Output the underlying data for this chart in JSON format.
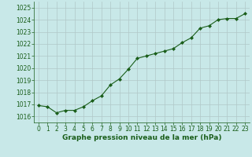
{
  "x": [
    0,
    1,
    2,
    3,
    4,
    5,
    6,
    7,
    8,
    9,
    10,
    11,
    12,
    13,
    14,
    15,
    16,
    17,
    18,
    19,
    20,
    21,
    22,
    23
  ],
  "y": [
    1016.9,
    1016.8,
    1016.3,
    1016.5,
    1016.5,
    1016.8,
    1017.3,
    1017.7,
    1018.6,
    1019.1,
    1019.9,
    1020.8,
    1021.0,
    1021.2,
    1021.4,
    1021.6,
    1022.1,
    1022.5,
    1023.3,
    1023.5,
    1024.0,
    1024.1,
    1024.1,
    1024.5
  ],
  "ylim": [
    1015.5,
    1025.5
  ],
  "xlim": [
    -0.5,
    23.5
  ],
  "yticks": [
    1016,
    1017,
    1018,
    1019,
    1020,
    1021,
    1022,
    1023,
    1024,
    1025
  ],
  "xticks": [
    0,
    1,
    2,
    3,
    4,
    5,
    6,
    7,
    8,
    9,
    10,
    11,
    12,
    13,
    14,
    15,
    16,
    17,
    18,
    19,
    20,
    21,
    22,
    23
  ],
  "line_color": "#1a5e1a",
  "marker_color": "#1a5e1a",
  "bg_color": "#c8e8e8",
  "grid_color": "#b0c8c8",
  "xlabel": "Graphe pression niveau de la mer (hPa)",
  "xlabel_color": "#1a5e1a",
  "tick_color": "#1a5e1a",
  "xlabel_fontsize": 6.5,
  "tick_fontsize": 5.5
}
